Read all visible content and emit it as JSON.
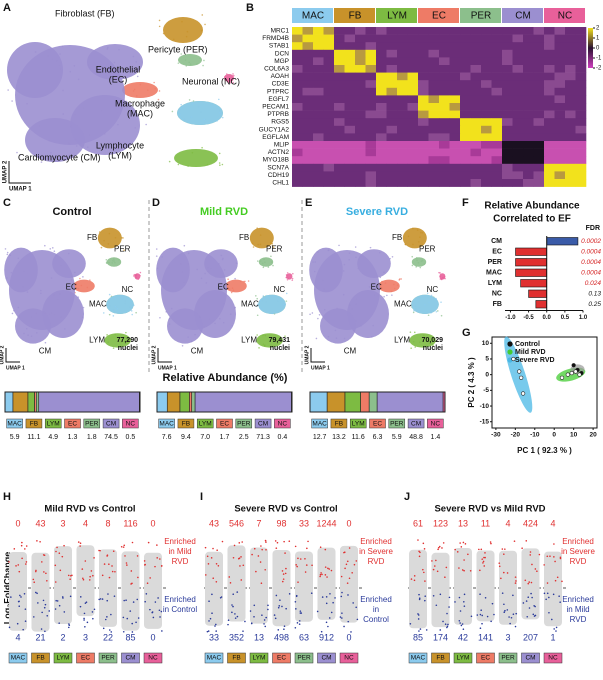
{
  "panel_labels": [
    "A",
    "B",
    "C",
    "D",
    "E",
    "F",
    "G",
    "H",
    "I",
    "J"
  ],
  "cell_types": {
    "names": [
      "MAC",
      "FB",
      "LYM",
      "EC",
      "PER",
      "CM",
      "NC"
    ],
    "colors": [
      "#8ccbee",
      "#c8922a",
      "#7dbb42",
      "#ee7b66",
      "#8cbf8c",
      "#9b8fd0",
      "#e8609a"
    ]
  },
  "overview_umap": {
    "clusters": [
      [
        "Fibroblast (FB)"
      ],
      [
        "Pericyte (PER)"
      ],
      [
        "Endothelial",
        "(EC)"
      ],
      [
        "Neuronal (NC)"
      ],
      [
        "Macrophage",
        "(MAC)"
      ],
      [
        "Lymphocyte",
        "(LYM)"
      ],
      [
        "Cardiomyocyte (CM)"
      ]
    ],
    "x_label": "UMAP 1",
    "y_label": "UMAP 2"
  },
  "heatmap": {
    "genes": [
      "MRC1",
      "FRMD4B",
      "STAB1",
      "DCN",
      "MGP",
      "COL6A3",
      "AOAH",
      "CD3E",
      "PTPRC",
      "EGFL7",
      "PECAM1",
      "PTPRB",
      "RGS5",
      "GUCY1A2",
      "EGFLAM",
      "MLIP",
      "ACTN2",
      "MYO18B",
      "SCN7A",
      "CDH19",
      "CHL1"
    ],
    "scale_ticks": [
      2,
      1,
      0,
      -1,
      -2
    ]
  },
  "nuclei_label": "nuclei",
  "abundance_title": "Relative Abundance (%)",
  "conditions": [
    {
      "title": "Control",
      "color": "#111111",
      "nuclei_count": "77,290",
      "abundance": [
        5.9,
        11.1,
        4.9,
        1.3,
        1.8,
        74.5,
        0.5
      ]
    },
    {
      "title": "Mild RVD",
      "color": "#44cc22",
      "nuclei_count": "79,431",
      "abundance": [
        7.6,
        9.4,
        7.0,
        1.7,
        2.5,
        71.3,
        0.4
      ],
      "abundance_labels": [
        "7.6",
        "9.4",
        "7.0",
        "1.7",
        "2.5",
        "71.3",
        "0.4"
      ]
    },
    {
      "title": "Severe RVD",
      "color": "#38aee0",
      "nuclei_count": "70,029",
      "abundance": [
        12.7,
        13.2,
        11.6,
        6.3,
        5.9,
        48.8,
        1.4
      ]
    }
  ],
  "correlation": {
    "type": "bar",
    "title": [
      "Relative Abundance",
      "Correlated to EF"
    ],
    "fdr_title": "FDR",
    "categories": [
      "CM",
      "EC",
      "PER",
      "MAC",
      "LYM",
      "NC",
      "FB"
    ],
    "values": [
      0.86,
      -0.86,
      -0.86,
      -0.86,
      -0.72,
      -0.5,
      -0.3
    ],
    "colors": [
      "#3a5ba8",
      "#e03030",
      "#e03030",
      "#e03030",
      "#e03030",
      "#e03030",
      "#e03030"
    ],
    "fdr": [
      0.0002,
      0.0004,
      0.0004,
      0.0004,
      0.024,
      0.13,
      0.25
    ],
    "fdr_colors": [
      "#d42020",
      "#d42020",
      "#d42020",
      "#d42020",
      "#d42020",
      "#111111",
      "#111111"
    ],
    "xlim": [
      -1.15,
      1.0
    ],
    "xticks": [
      {
        "value": -1,
        "label": "-1.0"
      },
      -0.5,
      {
        "value": 0,
        "label": "0.0"
      },
      0.5,
      {
        "value": 1,
        "label": "1.0"
      }
    ]
  },
  "pca": {
    "type": "scatter",
    "x_label": "PC 1 ( 92.3 % )",
    "y_label": "PC 2 ( 4.3 % )",
    "xlim": [
      -32,
      22
    ],
    "ylim": [
      -17,
      12
    ],
    "xticks": [
      -30,
      -20,
      -10,
      0,
      10,
      20
    ],
    "yticks": [
      -15,
      -10,
      -5,
      0,
      5,
      10
    ],
    "series": [
      {
        "name": "Control",
        "color": "#111111",
        "x": [
          10,
          12,
          14
        ],
        "y": [
          3,
          1.5,
          0.5
        ]
      },
      {
        "name": "Mild RVD",
        "color": "#44cc33",
        "x": [
          4,
          7,
          9,
          11,
          13
        ],
        "y": [
          -1,
          0,
          0.5,
          1,
          0
        ]
      },
      {
        "name": "Severe RVD",
        "color": "#4ab8e6",
        "x": [
          -21,
          -18,
          -17,
          -16
        ],
        "y": [
          5,
          1,
          -1,
          -6
        ]
      }
    ]
  },
  "volcano": {
    "y_label": "Log₂FoldChange",
    "up_color": "#e03030",
    "down_color": "#2a3a9a",
    "comparisons": [
      {
        "title": "Mild RVD vs Control",
        "up": [
          0,
          43,
          3,
          4,
          8,
          116,
          0
        ],
        "down": [
          4,
          21,
          2,
          3,
          22,
          85,
          0
        ],
        "up_note": [
          "Enriched",
          "in Mild",
          "RVD"
        ],
        "down_note": [
          "Enriched",
          "in Control"
        ]
      },
      {
        "title": "Severe RVD vs Control",
        "up": [
          43,
          546,
          7,
          98,
          33,
          1244,
          0
        ],
        "down": [
          33,
          352,
          13,
          498,
          63,
          912,
          0
        ],
        "up_note": [
          "Enriched",
          "in Severe",
          "RVD"
        ],
        "down_note": [
          "Enriched",
          "in",
          "Control"
        ]
      },
      {
        "title": "Severe RVD vs Mild RVD",
        "up": [
          61,
          123,
          13,
          11,
          4,
          424,
          4
        ],
        "down": [
          85,
          174,
          42,
          141,
          3,
          207,
          1
        ],
        "up_note": [
          "Enriched",
          "in Severe",
          "RVD"
        ],
        "down_note": [
          "Enriched",
          "in Mild",
          "RVD"
        ]
      }
    ]
  }
}
